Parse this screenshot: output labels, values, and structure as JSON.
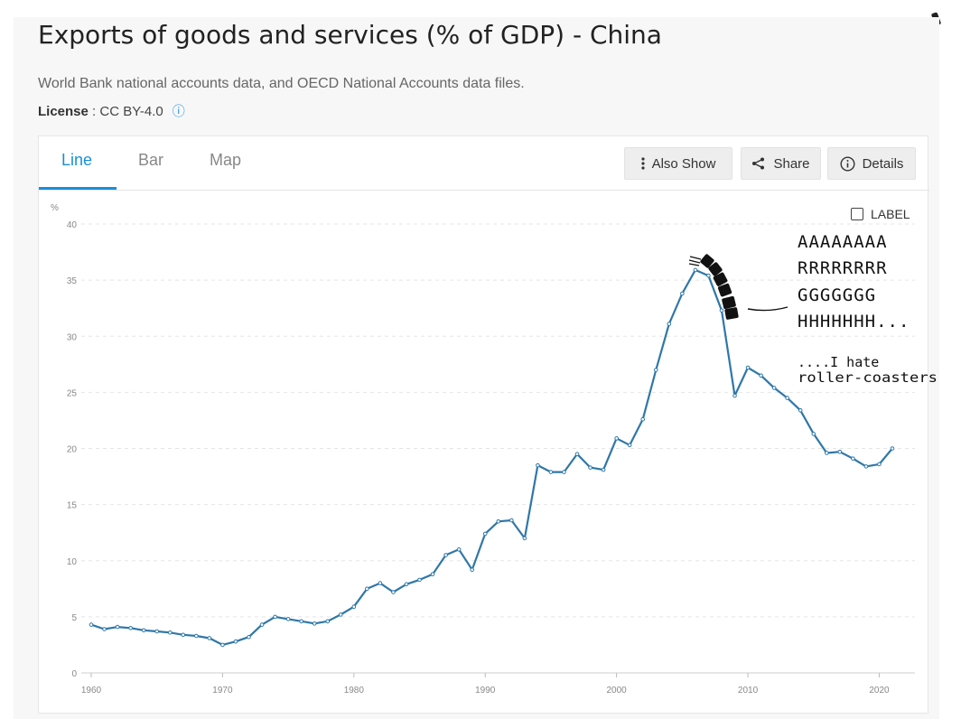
{
  "page": {
    "title": "Exports of goods and services (% of GDP) - China",
    "source": "World Bank national accounts data, and OECD National Accounts data files.",
    "license_label": "License",
    "license_sep": " : ",
    "license_value": "CC BY-4.0"
  },
  "tabs": [
    {
      "label": "Line",
      "active": true
    },
    {
      "label": "Bar",
      "active": false
    },
    {
      "label": "Map",
      "active": false
    }
  ],
  "toolbar": {
    "also_show": "Also Show",
    "share": "Share",
    "details": "Details"
  },
  "label_toggle": "LABEL",
  "annotation": {
    "lines": [
      "AAAAAAAA",
      "RRRRRRRR",
      "GGGGGGG",
      "HHHHHHH..."
    ],
    "aside_lines": [
      "....I hate",
      "roller-coasters"
    ]
  },
  "colors": {
    "line": "#2f77a8",
    "accent": "#1a8fd8",
    "grid": "#e5e5e5"
  },
  "chart_data": {
    "type": "line",
    "title": "",
    "xlabel": "",
    "ylabel": "%",
    "xlim": [
      1960,
      2021
    ],
    "ylim": [
      0,
      40
    ],
    "x_ticks": [
      1960,
      1970,
      1980,
      1990,
      2000,
      2010,
      2020
    ],
    "y_ticks": [
      0,
      5,
      10,
      15,
      20,
      25,
      30,
      35,
      40
    ],
    "grid": true,
    "series": [
      {
        "x": [
          1960,
          1961,
          1962,
          1963,
          1964,
          1965,
          1966,
          1967,
          1968,
          1969,
          1970,
          1971,
          1972,
          1973,
          1974,
          1975,
          1976,
          1977,
          1978,
          1979,
          1980,
          1981,
          1982,
          1983,
          1984,
          1985,
          1986,
          1987,
          1988,
          1989,
          1990,
          1991,
          1992,
          1993,
          1994,
          1995,
          1996,
          1997,
          1998,
          1999,
          2000,
          2001,
          2002,
          2003,
          2004,
          2005,
          2006,
          2007,
          2008,
          2009,
          2010,
          2011,
          2012,
          2013,
          2014,
          2015,
          2016,
          2017,
          2018,
          2019,
          2020,
          2021
        ],
        "values": [
          4.3,
          3.9,
          4.1,
          4.0,
          3.8,
          3.7,
          3.6,
          3.4,
          3.3,
          3.1,
          2.5,
          2.8,
          3.2,
          4.3,
          5.0,
          4.8,
          4.6,
          4.4,
          4.6,
          5.2,
          5.9,
          7.5,
          8.0,
          7.2,
          7.9,
          8.3,
          8.8,
          10.5,
          11.0,
          9.2,
          12.4,
          13.5,
          13.6,
          12.0,
          18.5,
          17.9,
          17.9,
          19.5,
          18.3,
          18.1,
          20.9,
          20.3,
          22.6,
          27.0,
          31.1,
          33.8,
          35.9,
          35.4,
          32.3,
          24.7,
          27.2,
          26.5,
          25.4,
          24.5,
          23.4,
          21.3,
          19.6,
          19.7,
          19.1,
          18.4,
          18.6,
          20.0
        ]
      }
    ]
  }
}
